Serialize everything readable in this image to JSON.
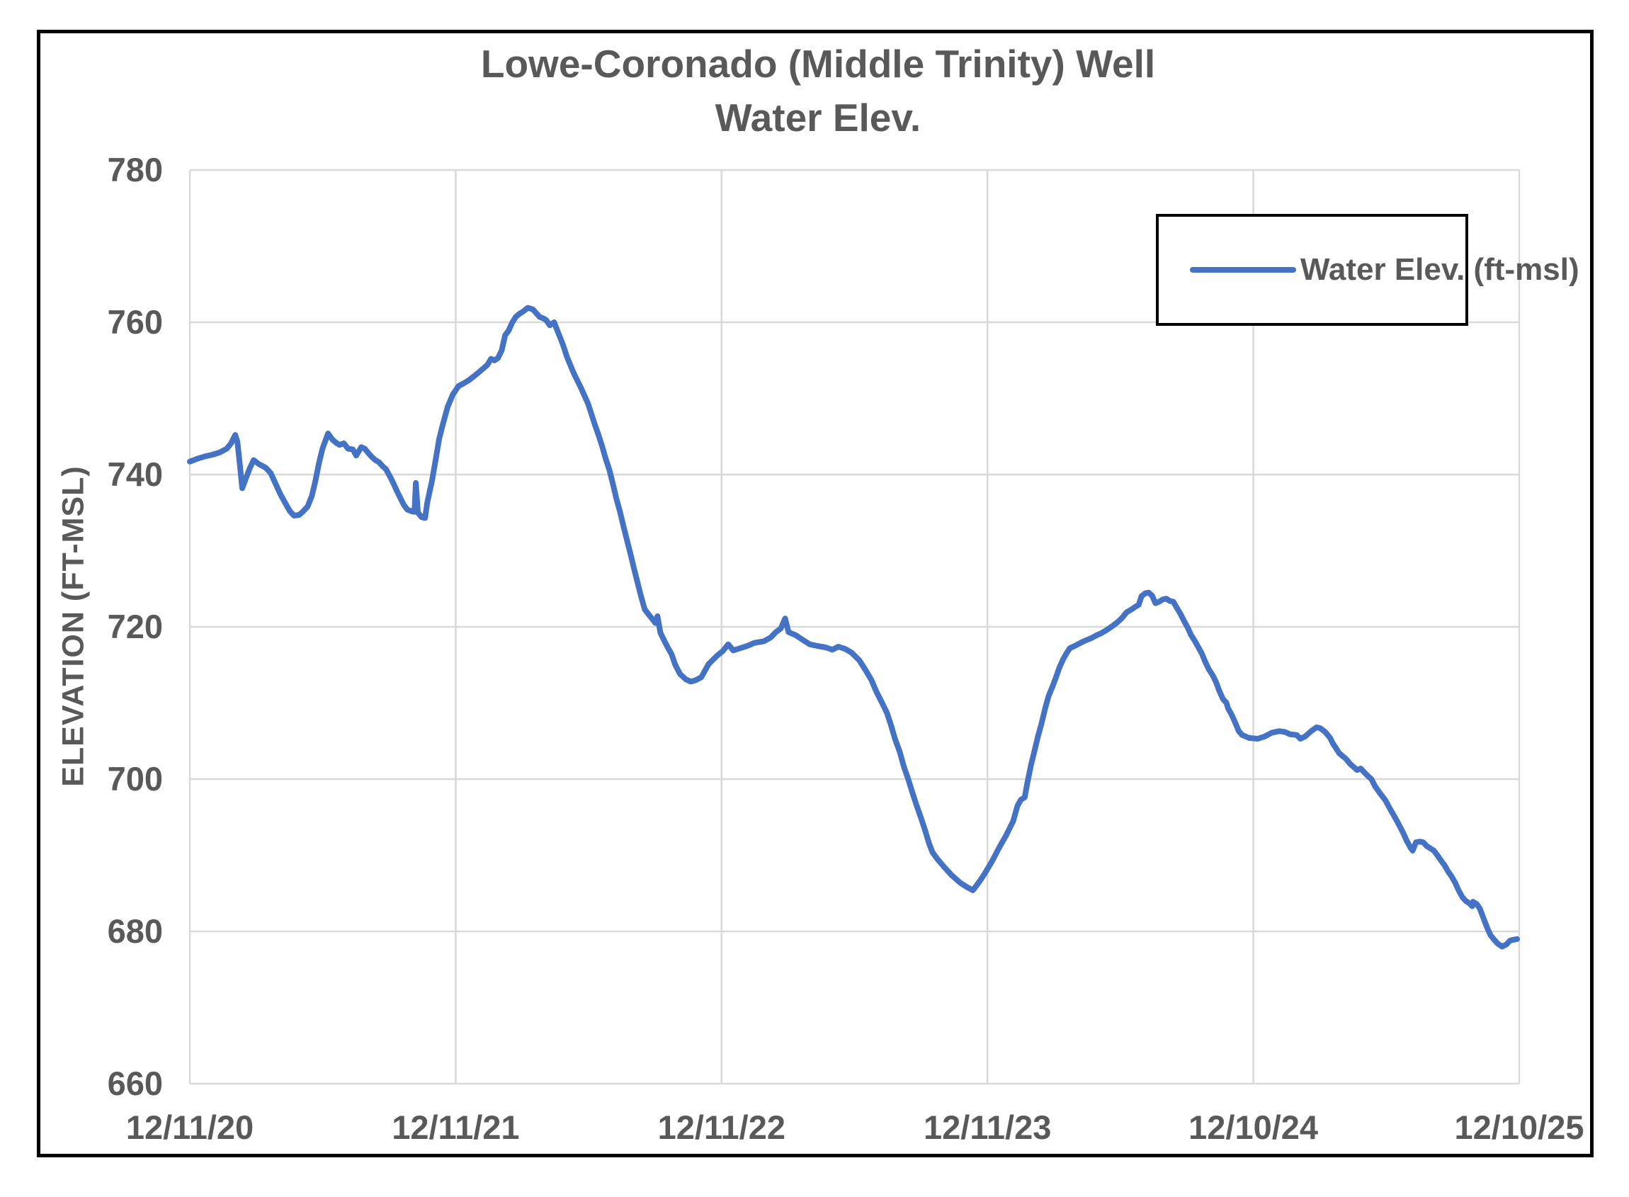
{
  "chart_data": {
    "type": "line",
    "title": "Lowe-Coronado (Middle Trinity) Well",
    "subtitle": "Water Elev.",
    "ylabel": "ELEVATION (FT-MSL)",
    "ylim": [
      660,
      780
    ],
    "y_ticks": [
      780,
      760,
      740,
      720,
      700,
      680,
      660
    ],
    "xlim_years": [
      0,
      5
    ],
    "x_tick_positions_years": [
      0,
      1,
      2,
      3,
      4,
      5
    ],
    "x_tick_labels": [
      "12/11/20",
      "12/11/21",
      "12/11/22",
      "12/11/23",
      "12/10/24",
      "12/10/25"
    ],
    "grid": true,
    "legend": {
      "label": "Water Elev. (ft-msl)",
      "position": "top-right-inside"
    },
    "colors": {
      "series": "#4472C4",
      "gridline": "#D9D9D9",
      "text": "#595959",
      "border": "#000000"
    },
    "series": [
      {
        "name": "Water Elev. (ft-msl)",
        "color": "#4472C4",
        "x_unit": "years since 12/11/2020",
        "y_unit": "ft-msl",
        "points": [
          [
            0.0,
            741.7
          ],
          [
            0.03,
            742.1
          ],
          [
            0.059,
            742.4
          ],
          [
            0.085,
            742.6
          ],
          [
            0.112,
            742.9
          ],
          [
            0.139,
            743.4
          ],
          [
            0.155,
            744.1
          ],
          [
            0.171,
            745.2
          ],
          [
            0.179,
            744.3
          ],
          [
            0.189,
            741.0
          ],
          [
            0.197,
            738.2
          ],
          [
            0.211,
            739.5
          ],
          [
            0.224,
            740.7
          ],
          [
            0.24,
            741.9
          ],
          [
            0.259,
            741.4
          ],
          [
            0.285,
            740.9
          ],
          [
            0.304,
            740.2
          ],
          [
            0.32,
            739.0
          ],
          [
            0.341,
            737.4
          ],
          [
            0.36,
            736.2
          ],
          [
            0.376,
            735.2
          ],
          [
            0.392,
            734.6
          ],
          [
            0.411,
            734.7
          ],
          [
            0.424,
            735.1
          ],
          [
            0.443,
            735.8
          ],
          [
            0.459,
            737.2
          ],
          [
            0.472,
            739.1
          ],
          [
            0.485,
            741.4
          ],
          [
            0.499,
            743.4
          ],
          [
            0.52,
            745.4
          ],
          [
            0.536,
            744.6
          ],
          [
            0.549,
            744.2
          ],
          [
            0.563,
            743.9
          ],
          [
            0.579,
            744.1
          ],
          [
            0.595,
            743.4
          ],
          [
            0.613,
            743.3
          ],
          [
            0.626,
            742.5
          ],
          [
            0.645,
            743.6
          ],
          [
            0.658,
            743.4
          ],
          [
            0.672,
            742.8
          ],
          [
            0.685,
            742.3
          ],
          [
            0.698,
            741.9
          ],
          [
            0.712,
            741.6
          ],
          [
            0.725,
            741.1
          ],
          [
            0.738,
            740.7
          ],
          [
            0.752,
            739.8
          ],
          [
            0.765,
            738.9
          ],
          [
            0.778,
            737.9
          ],
          [
            0.792,
            736.9
          ],
          [
            0.805,
            736.0
          ],
          [
            0.818,
            735.4
          ],
          [
            0.832,
            735.2
          ],
          [
            0.845,
            735.1
          ],
          [
            0.85,
            738.9
          ],
          [
            0.858,
            735.0
          ],
          [
            0.872,
            734.4
          ],
          [
            0.885,
            734.3
          ],
          [
            0.893,
            736.3
          ],
          [
            0.911,
            739.2
          ],
          [
            0.925,
            742.0
          ],
          [
            0.938,
            744.7
          ],
          [
            0.951,
            746.5
          ],
          [
            0.97,
            748.9
          ],
          [
            0.989,
            750.5
          ],
          [
            1.01,
            751.6
          ],
          [
            1.031,
            752.0
          ],
          [
            1.05,
            752.4
          ],
          [
            1.079,
            753.2
          ],
          [
            1.106,
            754.0
          ],
          [
            1.119,
            754.4
          ],
          [
            1.133,
            755.2
          ],
          [
            1.146,
            755.0
          ],
          [
            1.159,
            755.3
          ],
          [
            1.173,
            756.3
          ],
          [
            1.186,
            758.3
          ],
          [
            1.199,
            758.9
          ],
          [
            1.213,
            760.0
          ],
          [
            1.226,
            760.7
          ],
          [
            1.239,
            761.1
          ],
          [
            1.253,
            761.4
          ],
          [
            1.271,
            761.9
          ],
          [
            1.29,
            761.7
          ],
          [
            1.303,
            761.2
          ],
          [
            1.316,
            760.7
          ],
          [
            1.33,
            760.5
          ],
          [
            1.34,
            760.3
          ],
          [
            1.354,
            759.6
          ],
          [
            1.37,
            760.0
          ],
          [
            1.388,
            758.4
          ],
          [
            1.404,
            757.0
          ],
          [
            1.418,
            755.5
          ],
          [
            1.444,
            753.3
          ],
          [
            1.471,
            751.4
          ],
          [
            1.498,
            749.3
          ],
          [
            1.511,
            747.9
          ],
          [
            1.524,
            746.5
          ],
          [
            1.538,
            745.1
          ],
          [
            1.551,
            743.7
          ],
          [
            1.564,
            742.1
          ],
          [
            1.578,
            740.6
          ],
          [
            1.591,
            738.8
          ],
          [
            1.604,
            736.9
          ],
          [
            1.618,
            735.1
          ],
          [
            1.631,
            733.2
          ],
          [
            1.644,
            731.4
          ],
          [
            1.658,
            729.5
          ],
          [
            1.671,
            727.6
          ],
          [
            1.684,
            725.8
          ],
          [
            1.698,
            723.9
          ],
          [
            1.711,
            722.3
          ],
          [
            1.724,
            721.7
          ],
          [
            1.738,
            721.1
          ],
          [
            1.751,
            720.5
          ],
          [
            1.759,
            721.4
          ],
          [
            1.77,
            719.2
          ],
          [
            1.783,
            718.3
          ],
          [
            1.796,
            717.4
          ],
          [
            1.812,
            716.4
          ],
          [
            1.826,
            715.0
          ],
          [
            1.844,
            713.8
          ],
          [
            1.866,
            713.1
          ],
          [
            1.884,
            712.8
          ],
          [
            1.903,
            713.0
          ],
          [
            1.924,
            713.4
          ],
          [
            1.951,
            715.1
          ],
          [
            1.983,
            716.2
          ],
          [
            2.004,
            716.8
          ],
          [
            2.025,
            717.7
          ],
          [
            2.044,
            716.9
          ],
          [
            2.071,
            717.2
          ],
          [
            2.097,
            717.5
          ],
          [
            2.124,
            717.9
          ],
          [
            2.159,
            718.1
          ],
          [
            2.185,
            718.6
          ],
          [
            2.204,
            719.3
          ],
          [
            2.223,
            719.8
          ],
          [
            2.239,
            721.1
          ],
          [
            2.252,
            719.3
          ],
          [
            2.279,
            718.9
          ],
          [
            2.305,
            718.3
          ],
          [
            2.332,
            717.7
          ],
          [
            2.359,
            717.5
          ],
          [
            2.391,
            717.3
          ],
          [
            2.417,
            717.0
          ],
          [
            2.439,
            717.4
          ],
          [
            2.465,
            717.1
          ],
          [
            2.489,
            716.6
          ],
          [
            2.518,
            715.6
          ],
          [
            2.54,
            714.4
          ],
          [
            2.564,
            713.0
          ],
          [
            2.582,
            711.5
          ],
          [
            2.604,
            710.0
          ],
          [
            2.622,
            708.7
          ],
          [
            2.638,
            707.0
          ],
          [
            2.652,
            705.3
          ],
          [
            2.67,
            703.6
          ],
          [
            2.686,
            701.6
          ],
          [
            2.702,
            700.0
          ],
          [
            2.718,
            698.2
          ],
          [
            2.734,
            696.5
          ],
          [
            2.75,
            694.9
          ],
          [
            2.766,
            693.2
          ],
          [
            2.78,
            691.6
          ],
          [
            2.793,
            690.4
          ],
          [
            2.812,
            689.5
          ],
          [
            2.836,
            688.5
          ],
          [
            2.865,
            687.4
          ],
          [
            2.897,
            686.4
          ],
          [
            2.924,
            685.8
          ],
          [
            2.945,
            685.4
          ],
          [
            2.969,
            686.5
          ],
          [
            2.99,
            687.6
          ],
          [
            3.017,
            689.2
          ],
          [
            3.044,
            691.0
          ],
          [
            3.07,
            692.6
          ],
          [
            3.097,
            694.5
          ],
          [
            3.113,
            696.5
          ],
          [
            3.126,
            697.3
          ],
          [
            3.14,
            697.6
          ],
          [
            3.15,
            699.5
          ],
          [
            3.164,
            701.9
          ],
          [
            3.177,
            703.7
          ],
          [
            3.19,
            705.6
          ],
          [
            3.204,
            707.4
          ],
          [
            3.217,
            709.3
          ],
          [
            3.23,
            710.9
          ],
          [
            3.244,
            712.1
          ],
          [
            3.257,
            713.3
          ],
          [
            3.27,
            714.6
          ],
          [
            3.284,
            715.7
          ],
          [
            3.297,
            716.5
          ],
          [
            3.31,
            717.2
          ],
          [
            3.329,
            717.5
          ],
          [
            3.35,
            717.9
          ],
          [
            3.369,
            718.2
          ],
          [
            3.39,
            718.5
          ],
          [
            3.411,
            718.9
          ],
          [
            3.43,
            719.2
          ],
          [
            3.449,
            719.6
          ],
          [
            3.47,
            720.1
          ],
          [
            3.489,
            720.6
          ],
          [
            3.507,
            721.2
          ],
          [
            3.523,
            721.9
          ],
          [
            3.542,
            722.3
          ],
          [
            3.555,
            722.6
          ],
          [
            3.569,
            722.9
          ],
          [
            3.579,
            724.0
          ],
          [
            3.593,
            724.4
          ],
          [
            3.606,
            724.5
          ],
          [
            3.619,
            724.1
          ],
          [
            3.632,
            723.1
          ],
          [
            3.646,
            723.3
          ],
          [
            3.659,
            723.6
          ],
          [
            3.673,
            723.7
          ],
          [
            3.686,
            723.4
          ],
          [
            3.699,
            723.3
          ],
          [
            3.712,
            722.5
          ],
          [
            3.726,
            721.7
          ],
          [
            3.739,
            720.8
          ],
          [
            3.753,
            719.9
          ],
          [
            3.766,
            718.9
          ],
          [
            3.779,
            718.2
          ],
          [
            3.792,
            717.4
          ],
          [
            3.806,
            716.5
          ],
          [
            3.819,
            715.4
          ],
          [
            3.833,
            714.4
          ],
          [
            3.846,
            713.7
          ],
          [
            3.859,
            712.8
          ],
          [
            3.872,
            711.6
          ],
          [
            3.886,
            710.5
          ],
          [
            3.899,
            710.0
          ],
          [
            3.905,
            709.3
          ],
          [
            3.918,
            708.5
          ],
          [
            3.932,
            707.4
          ],
          [
            3.945,
            706.3
          ],
          [
            3.958,
            705.8
          ],
          [
            3.985,
            705.4
          ],
          [
            4.017,
            705.3
          ],
          [
            4.043,
            705.6
          ],
          [
            4.07,
            706.1
          ],
          [
            4.097,
            706.3
          ],
          [
            4.118,
            706.2
          ],
          [
            4.137,
            705.9
          ],
          [
            4.163,
            705.8
          ],
          [
            4.177,
            705.3
          ],
          [
            4.195,
            705.6
          ],
          [
            4.217,
            706.3
          ],
          [
            4.238,
            706.8
          ],
          [
            4.251,
            706.7
          ],
          [
            4.27,
            706.2
          ],
          [
            4.289,
            705.4
          ],
          [
            4.299,
            704.7
          ],
          [
            4.31,
            704.1
          ],
          [
            4.323,
            703.4
          ],
          [
            4.337,
            703.0
          ],
          [
            4.35,
            702.6
          ],
          [
            4.364,
            702.0
          ],
          [
            4.377,
            701.6
          ],
          [
            4.39,
            701.2
          ],
          [
            4.404,
            701.4
          ],
          [
            4.417,
            700.9
          ],
          [
            4.431,
            700.4
          ],
          [
            4.444,
            700.0
          ],
          [
            4.457,
            699.1
          ],
          [
            4.471,
            698.4
          ],
          [
            4.484,
            697.8
          ],
          [
            4.497,
            697.2
          ],
          [
            4.511,
            696.3
          ],
          [
            4.524,
            695.5
          ],
          [
            4.537,
            694.7
          ],
          [
            4.551,
            693.8
          ],
          [
            4.564,
            692.9
          ],
          [
            4.577,
            691.9
          ],
          [
            4.591,
            691.0
          ],
          [
            4.599,
            690.6
          ],
          [
            4.612,
            691.7
          ],
          [
            4.626,
            691.8
          ],
          [
            4.639,
            691.7
          ],
          [
            4.652,
            691.2
          ],
          [
            4.666,
            690.9
          ],
          [
            4.679,
            690.6
          ],
          [
            4.692,
            690.0
          ],
          [
            4.706,
            689.3
          ],
          [
            4.719,
            688.7
          ],
          [
            4.732,
            687.9
          ],
          [
            4.746,
            687.2
          ],
          [
            4.759,
            686.4
          ],
          [
            4.772,
            685.4
          ],
          [
            4.786,
            684.5
          ],
          [
            4.799,
            684.0
          ],
          [
            4.812,
            683.7
          ],
          [
            4.823,
            683.3
          ],
          [
            4.826,
            683.9
          ],
          [
            4.84,
            683.6
          ],
          [
            4.852,
            683.0
          ],
          [
            4.866,
            681.7
          ],
          [
            4.879,
            680.5
          ],
          [
            4.892,
            679.5
          ],
          [
            4.906,
            678.9
          ],
          [
            4.919,
            678.4
          ],
          [
            4.936,
            678.0
          ],
          [
            4.952,
            678.3
          ],
          [
            4.966,
            678.8
          ],
          [
            4.979,
            678.9
          ],
          [
            4.992,
            679.0
          ]
        ]
      }
    ]
  }
}
